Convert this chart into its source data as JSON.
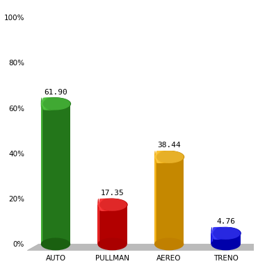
{
  "categories": [
    "AUTO",
    "PULLMAN",
    "AEREO",
    "TRENO"
  ],
  "values": [
    61.9,
    17.35,
    38.44,
    4.76
  ],
  "bar_colors_main": [
    "#2E8B22",
    "#CC0000",
    "#E8A000",
    "#0000CC"
  ],
  "bar_colors_light": [
    "#55CC44",
    "#FF4444",
    "#FFCC44",
    "#4444FF"
  ],
  "bar_colors_dark": [
    "#0A4A0A",
    "#7A0000",
    "#7A5500",
    "#000088"
  ],
  "bar_colors_shadow": [
    "#1A6010",
    "#AA0000",
    "#C08000",
    "#0000AA"
  ],
  "ylim": [
    0,
    100
  ],
  "yticks": [
    0,
    20,
    40,
    60,
    80,
    100
  ],
  "ytick_labels": [
    "0%",
    "20%",
    "40%",
    "60%",
    "80%",
    "100%"
  ],
  "background_color": "#FFFFFF",
  "label_fontsize": 7.5,
  "value_fontsize": 8,
  "bar_width": 0.52,
  "floor_color": "#BBBBBB",
  "floor_shadow": "#999999"
}
